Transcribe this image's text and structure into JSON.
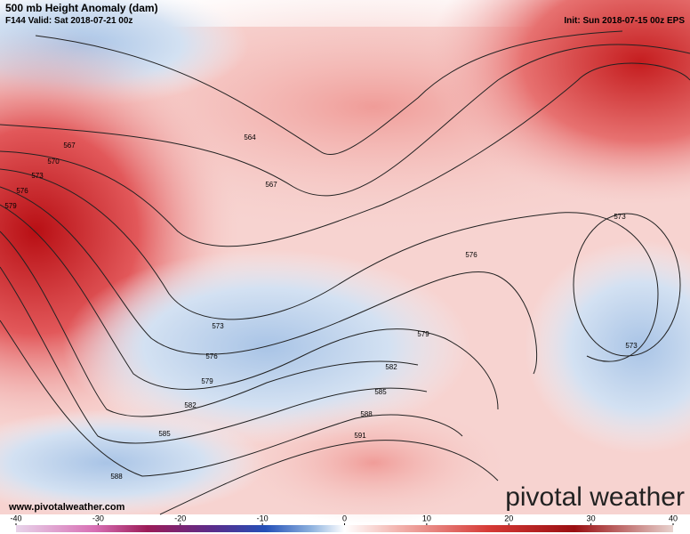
{
  "header": {
    "title": "500 mb Height Anomaly (dam)",
    "valid": "F144 Valid: Sat 2018-07-21 00z",
    "init": "Init: Sun 2018-07-15 00z EPS"
  },
  "contour_labels": [
    564,
    567,
    567,
    570,
    573,
    576,
    579,
    573,
    576,
    579,
    582,
    585,
    588,
    588,
    591,
    585,
    582,
    579,
    576,
    573,
    573
  ],
  "watermark": "www.pivotalweather.com",
  "logo": "pivotal weather",
  "colorbar": {
    "lim": [
      -40,
      40
    ],
    "ticks": [
      -40,
      -30,
      -20,
      -10,
      0,
      10,
      20,
      30,
      40
    ]
  }
}
